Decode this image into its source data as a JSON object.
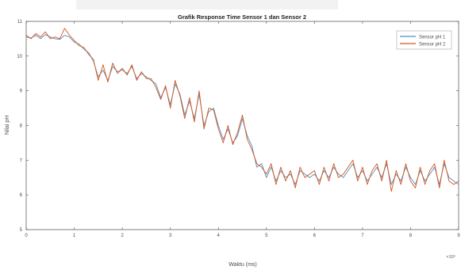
{
  "chart_data": {
    "type": "line",
    "title": "Grafik Response Time Sensor 1 dan Sensor 2",
    "xlabel": "Waktu (ms)",
    "ylabel": "Nilai pH",
    "x_exponent_label": "×10⁴",
    "xlim": [
      0,
      9
    ],
    "ylim": [
      5,
      11
    ],
    "x_scale_note": "x values shown in units of 10^4 ms",
    "x_ticks": [
      "0",
      "1",
      "2",
      "3",
      "4",
      "5",
      "6",
      "7",
      "8",
      "9"
    ],
    "y_ticks": [
      "5",
      "6",
      "7",
      "8",
      "9",
      "10",
      "11"
    ],
    "grid": false,
    "legend_position": "top-right",
    "series": [
      {
        "name": "Sensor pH 1",
        "color": "#4e8fc2",
        "x": [
          0,
          0.1,
          0.2,
          0.3,
          0.4,
          0.5,
          0.6,
          0.7,
          0.8,
          0.9,
          1.0,
          1.1,
          1.2,
          1.3,
          1.4,
          1.5,
          1.6,
          1.7,
          1.8,
          1.9,
          2.0,
          2.1,
          2.2,
          2.3,
          2.4,
          2.5,
          2.6,
          2.7,
          2.8,
          2.9,
          3.0,
          3.1,
          3.2,
          3.3,
          3.4,
          3.5,
          3.6,
          3.7,
          3.8,
          3.9,
          4.0,
          4.1,
          4.2,
          4.3,
          4.4,
          4.5,
          4.6,
          4.7,
          4.8,
          4.9,
          5.0,
          5.1,
          5.2,
          5.3,
          5.4,
          5.5,
          5.6,
          5.7,
          5.8,
          5.9,
          6.0,
          6.1,
          6.2,
          6.3,
          6.4,
          6.5,
          6.6,
          6.7,
          6.8,
          6.9,
          7.0,
          7.1,
          7.2,
          7.3,
          7.4,
          7.5,
          7.6,
          7.7,
          7.8,
          7.9,
          8.0,
          8.1,
          8.2,
          8.3,
          8.4,
          8.5,
          8.6,
          8.7,
          8.8,
          8.9,
          9.0
        ],
        "y": [
          10.55,
          10.52,
          10.6,
          10.5,
          10.62,
          10.55,
          10.5,
          10.48,
          10.6,
          10.55,
          10.4,
          10.35,
          10.2,
          10.1,
          9.85,
          9.4,
          9.6,
          9.3,
          9.7,
          9.55,
          9.6,
          9.5,
          9.7,
          9.35,
          9.5,
          9.4,
          9.3,
          9.2,
          8.8,
          9.1,
          8.6,
          9.2,
          8.9,
          8.3,
          8.7,
          8.2,
          8.9,
          8.0,
          8.4,
          8.5,
          8.0,
          7.6,
          7.9,
          7.5,
          7.7,
          8.2,
          7.7,
          7.4,
          6.8,
          6.9,
          6.5,
          6.8,
          6.4,
          6.7,
          6.5,
          6.6,
          6.3,
          6.7,
          6.6,
          6.5,
          6.6,
          6.4,
          6.7,
          6.5,
          6.8,
          6.6,
          6.5,
          6.7,
          6.9,
          6.5,
          6.7,
          6.4,
          6.6,
          6.8,
          6.5,
          6.9,
          6.3,
          6.6,
          6.4,
          6.8,
          6.5,
          6.3,
          6.7,
          6.4,
          6.6,
          6.8,
          6.3,
          6.9,
          6.5,
          6.4,
          6.3
        ]
      },
      {
        "name": "Sensor pH 2",
        "color": "#d95319",
        "x": [
          0,
          0.1,
          0.2,
          0.3,
          0.4,
          0.5,
          0.6,
          0.7,
          0.8,
          0.9,
          1.0,
          1.1,
          1.2,
          1.3,
          1.4,
          1.5,
          1.6,
          1.7,
          1.8,
          1.9,
          2.0,
          2.1,
          2.2,
          2.3,
          2.4,
          2.5,
          2.6,
          2.7,
          2.8,
          2.9,
          3.0,
          3.1,
          3.2,
          3.3,
          3.4,
          3.5,
          3.6,
          3.7,
          3.8,
          3.9,
          4.0,
          4.1,
          4.2,
          4.3,
          4.4,
          4.5,
          4.6,
          4.7,
          4.8,
          4.9,
          5.0,
          5.1,
          5.2,
          5.3,
          5.4,
          5.5,
          5.6,
          5.7,
          5.8,
          5.9,
          6.0,
          6.1,
          6.2,
          6.3,
          6.4,
          6.5,
          6.6,
          6.7,
          6.8,
          6.9,
          7.0,
          7.1,
          7.2,
          7.3,
          7.4,
          7.5,
          7.6,
          7.7,
          7.8,
          7.9,
          8.0,
          8.1,
          8.2,
          8.3,
          8.4,
          8.5,
          8.6,
          8.7,
          8.8,
          8.9,
          9.0
        ],
        "y": [
          10.6,
          10.5,
          10.65,
          10.55,
          10.7,
          10.5,
          10.55,
          10.5,
          10.8,
          10.6,
          10.45,
          10.3,
          10.25,
          10.05,
          9.9,
          9.3,
          9.75,
          9.25,
          9.8,
          9.5,
          9.65,
          9.45,
          9.75,
          9.3,
          9.55,
          9.35,
          9.35,
          9.1,
          8.75,
          9.15,
          8.5,
          9.3,
          8.85,
          8.2,
          8.8,
          8.1,
          9.0,
          7.9,
          8.5,
          8.45,
          7.9,
          7.5,
          8.0,
          7.45,
          7.8,
          8.3,
          7.6,
          7.3,
          6.9,
          6.8,
          6.6,
          6.9,
          6.3,
          6.8,
          6.4,
          6.7,
          6.2,
          6.8,
          6.5,
          6.6,
          6.7,
          6.3,
          6.8,
          6.4,
          6.9,
          6.5,
          6.6,
          6.8,
          7.0,
          6.4,
          6.8,
          6.3,
          6.7,
          6.9,
          6.4,
          7.0,
          6.1,
          6.7,
          6.3,
          6.9,
          6.4,
          6.2,
          6.8,
          6.3,
          6.7,
          6.9,
          6.2,
          7.0,
          6.4,
          6.3,
          6.4
        ]
      }
    ]
  }
}
